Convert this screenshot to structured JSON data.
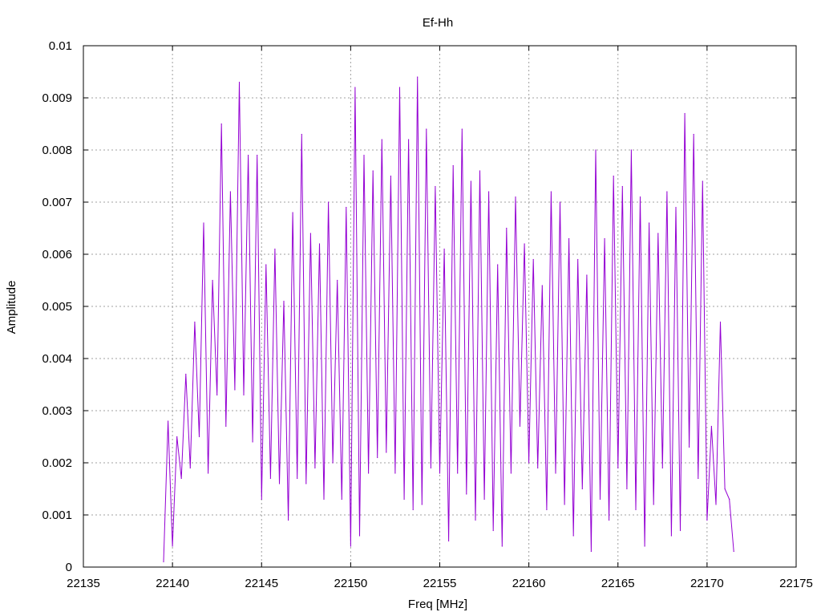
{
  "chart_data": {
    "type": "line",
    "title": "Ef-Hh",
    "xlabel": "Freq [MHz]",
    "ylabel": "Amplitude",
    "xlim": [
      22135,
      22175
    ],
    "ylim": [
      0,
      0.01
    ],
    "x_ticks": [
      "22135",
      "22140",
      "22145",
      "22150",
      "22155",
      "22160",
      "22165",
      "22170",
      "22175"
    ],
    "y_ticks": [
      "0",
      "0.001",
      "0.002",
      "0.003",
      "0.004",
      "0.005",
      "0.006",
      "0.007",
      "0.008",
      "0.009",
      "0.01"
    ],
    "grid": true,
    "series": [
      {
        "color": "#9400d3",
        "x": [
          22139.5,
          22139.75,
          22140.0,
          22140.25,
          22140.5,
          22140.75,
          22141.0,
          22141.25,
          22141.5,
          22141.75,
          22142.0,
          22142.25,
          22142.5,
          22142.75,
          22143.0,
          22143.25,
          22143.5,
          22143.75,
          22144.0,
          22144.25,
          22144.5,
          22144.75,
          22145.0,
          22145.25,
          22145.5,
          22145.75,
          22146.0,
          22146.25,
          22146.5,
          22146.75,
          22147.0,
          22147.25,
          22147.5,
          22147.75,
          22148.0,
          22148.25,
          22148.5,
          22148.75,
          22149.0,
          22149.25,
          22149.5,
          22149.75,
          22150.0,
          22150.25,
          22150.5,
          22150.75,
          22151.0,
          22151.25,
          22151.5,
          22151.75,
          22152.0,
          22152.25,
          22152.5,
          22152.75,
          22153.0,
          22153.25,
          22153.5,
          22153.75,
          22154.0,
          22154.25,
          22154.5,
          22154.75,
          22155.0,
          22155.25,
          22155.5,
          22155.75,
          22156.0,
          22156.25,
          22156.5,
          22156.75,
          22157.0,
          22157.25,
          22157.5,
          22157.75,
          22158.0,
          22158.25,
          22158.5,
          22158.75,
          22159.0,
          22159.25,
          22159.5,
          22159.75,
          22160.0,
          22160.25,
          22160.5,
          22160.75,
          22161.0,
          22161.25,
          22161.5,
          22161.75,
          22162.0,
          22162.25,
          22162.5,
          22162.75,
          22163.0,
          22163.25,
          22163.5,
          22163.75,
          22164.0,
          22164.25,
          22164.5,
          22164.75,
          22165.0,
          22165.25,
          22165.5,
          22165.75,
          22166.0,
          22166.25,
          22166.5,
          22166.75,
          22167.0,
          22167.25,
          22167.5,
          22167.75,
          22168.0,
          22168.25,
          22168.5,
          22168.75,
          22169.0,
          22169.25,
          22169.5,
          22169.75,
          22170.0,
          22170.25,
          22170.5,
          22170.75,
          22171.0,
          22171.25,
          22171.5
        ],
        "y": [
          0.0001,
          0.0028,
          0.0004,
          0.0025,
          0.0017,
          0.0037,
          0.0019,
          0.0047,
          0.0025,
          0.0066,
          0.0018,
          0.0055,
          0.0033,
          0.0085,
          0.0027,
          0.0072,
          0.0034,
          0.0093,
          0.0033,
          0.0079,
          0.0024,
          0.0079,
          0.0013,
          0.0058,
          0.0017,
          0.0061,
          0.0016,
          0.0051,
          0.0009,
          0.0068,
          0.0017,
          0.0083,
          0.0016,
          0.0064,
          0.0019,
          0.0062,
          0.0013,
          0.007,
          0.002,
          0.0055,
          0.0013,
          0.0069,
          0.0004,
          0.0092,
          0.0006,
          0.0079,
          0.0018,
          0.0076,
          0.0021,
          0.0082,
          0.0022,
          0.0075,
          0.0018,
          0.0092,
          0.0013,
          0.0082,
          0.0011,
          0.0094,
          0.0012,
          0.0084,
          0.0019,
          0.0073,
          0.0018,
          0.0061,
          0.0005,
          0.0077,
          0.0018,
          0.0084,
          0.0014,
          0.0074,
          0.0009,
          0.0076,
          0.0013,
          0.0072,
          0.0007,
          0.0058,
          0.0004,
          0.0065,
          0.0018,
          0.0071,
          0.0027,
          0.0062,
          0.002,
          0.0059,
          0.0019,
          0.0054,
          0.0011,
          0.0072,
          0.0018,
          0.007,
          0.0012,
          0.0063,
          0.0006,
          0.0059,
          0.0015,
          0.0056,
          0.0003,
          0.008,
          0.0013,
          0.0063,
          0.0009,
          0.0075,
          0.0019,
          0.0073,
          0.0015,
          0.008,
          0.0011,
          0.0071,
          0.0004,
          0.0066,
          0.0012,
          0.0064,
          0.0019,
          0.0072,
          0.0006,
          0.0069,
          0.0007,
          0.0087,
          0.0023,
          0.0083,
          0.0017,
          0.0074,
          0.0009,
          0.0027,
          0.0012,
          0.0047,
          0.0015,
          0.0013,
          0.0003
        ]
      }
    ]
  }
}
